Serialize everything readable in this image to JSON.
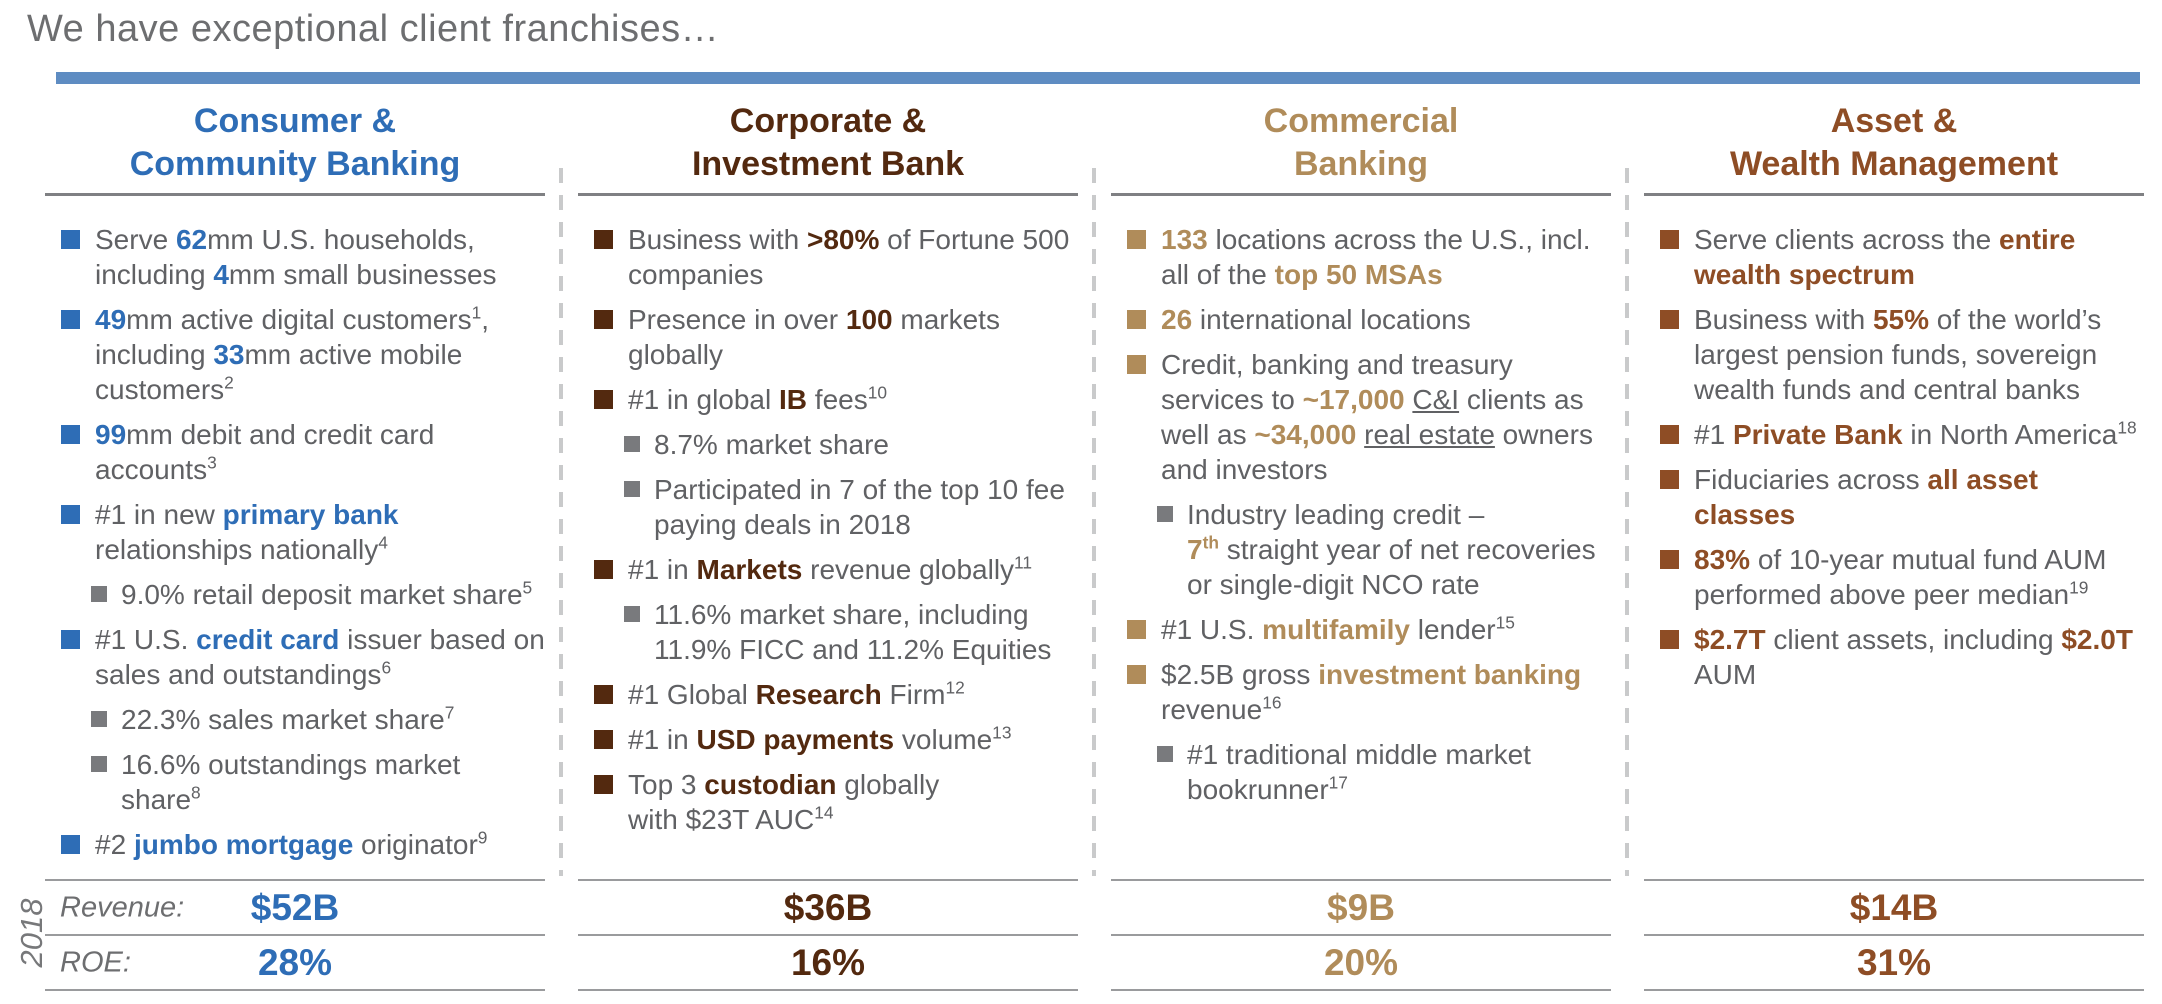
{
  "title": "We have exceptional client franchises…",
  "title_bar_color": "#5E8CC2",
  "year_label": "2018",
  "stats_labels": {
    "revenue": "Revenue:",
    "roe": "ROE:"
  },
  "columns": [
    {
      "id": "consumer-community-banking",
      "accent": "#2E6DB6",
      "title_lines": [
        "Consumer &",
        "Community Banking"
      ],
      "revenue": "$52B",
      "roe": "28%",
      "bullets": [
        {
          "level": 1,
          "segments": [
            {
              "t": "Serve "
            },
            {
              "t": "62",
              "b": 1,
              "a": 1
            },
            {
              "t": "mm U.S. households, including "
            },
            {
              "t": "4",
              "b": 1,
              "a": 1
            },
            {
              "t": "mm small businesses"
            }
          ]
        },
        {
          "level": 1,
          "segments": [
            {
              "t": "49",
              "b": 1,
              "a": 1
            },
            {
              "t": "mm active digital customers"
            },
            {
              "t": "1",
              "sup": 1
            },
            {
              "t": ", including "
            },
            {
              "t": "33",
              "b": 1,
              "a": 1
            },
            {
              "t": "mm active mobile customers"
            },
            {
              "t": "2",
              "sup": 1
            }
          ]
        },
        {
          "level": 1,
          "segments": [
            {
              "t": "99",
              "b": 1,
              "a": 1
            },
            {
              "t": "mm debit and credit card accounts"
            },
            {
              "t": "3",
              "sup": 1
            }
          ]
        },
        {
          "level": 1,
          "segments": [
            {
              "t": "#1 in new "
            },
            {
              "t": "primary bank",
              "b": 1,
              "a": 1
            },
            {
              "t": " relationships nationally"
            },
            {
              "t": "4",
              "sup": 1
            }
          ]
        },
        {
          "level": 2,
          "segments": [
            {
              "t": "9.0% retail deposit market share"
            },
            {
              "t": "5",
              "sup": 1
            }
          ]
        },
        {
          "level": 1,
          "segments": [
            {
              "t": "#1 U.S. "
            },
            {
              "t": "credit card",
              "b": 1,
              "a": 1
            },
            {
              "t": " issuer based on sales and outstandings"
            },
            {
              "t": "6",
              "sup": 1
            }
          ]
        },
        {
          "level": 2,
          "segments": [
            {
              "t": "22.3% sales market share"
            },
            {
              "t": "7",
              "sup": 1
            }
          ]
        },
        {
          "level": 2,
          "segments": [
            {
              "t": "16.6% outstandings market share"
            },
            {
              "t": "8",
              "sup": 1
            }
          ]
        },
        {
          "level": 1,
          "segments": [
            {
              "t": "#2 "
            },
            {
              "t": "jumbo mortgage",
              "b": 1,
              "a": 1
            },
            {
              "t": " originator"
            },
            {
              "t": "9",
              "sup": 1
            }
          ]
        }
      ]
    },
    {
      "id": "corporate-investment-bank",
      "accent": "#53290F",
      "title_lines": [
        "Corporate &",
        "Investment Bank"
      ],
      "revenue": "$36B",
      "roe": "16%",
      "bullets": [
        {
          "level": 1,
          "segments": [
            {
              "t": "Business with "
            },
            {
              "t": ">80%",
              "b": 1,
              "a": 1
            },
            {
              "t": " of Fortune 500 companies"
            }
          ]
        },
        {
          "level": 1,
          "segments": [
            {
              "t": "Presence in over "
            },
            {
              "t": "100",
              "b": 1,
              "a": 1
            },
            {
              "t": " markets globally"
            }
          ]
        },
        {
          "level": 1,
          "segments": [
            {
              "t": "#1 in global "
            },
            {
              "t": "IB",
              "b": 1,
              "a": 1
            },
            {
              "t": " fees"
            },
            {
              "t": "10",
              "sup": 1
            }
          ]
        },
        {
          "level": 2,
          "segments": [
            {
              "t": "8.7% market share"
            }
          ]
        },
        {
          "level": 2,
          "segments": [
            {
              "t": "Participated in 7 of the top 10 fee paying deals in 2018"
            }
          ]
        },
        {
          "level": 1,
          "segments": [
            {
              "t": "#1 in "
            },
            {
              "t": "Markets",
              "b": 1,
              "a": 1
            },
            {
              "t": " revenue globally"
            },
            {
              "t": "11",
              "sup": 1
            }
          ]
        },
        {
          "level": 2,
          "segments": [
            {
              "t": "11.6% market share, including 11.9% FICC and 11.2% Equities"
            }
          ]
        },
        {
          "level": 1,
          "segments": [
            {
              "t": "#1 Global "
            },
            {
              "t": "Research",
              "b": 1,
              "a": 1
            },
            {
              "t": " Firm"
            },
            {
              "t": "12",
              "sup": 1
            }
          ]
        },
        {
          "level": 1,
          "segments": [
            {
              "t": "#1 in "
            },
            {
              "t": "USD payments",
              "b": 1,
              "a": 1
            },
            {
              "t": " volume"
            },
            {
              "t": "13",
              "sup": 1
            }
          ]
        },
        {
          "level": 1,
          "segments": [
            {
              "t": "Top 3 "
            },
            {
              "t": "custodian",
              "b": 1,
              "a": 1
            },
            {
              "t": " globally"
            },
            {
              "br": 1
            },
            {
              "t": "with $23T AUC"
            },
            {
              "t": "14",
              "sup": 1
            }
          ]
        }
      ]
    },
    {
      "id": "commercial-banking",
      "accent": "#B08C5A",
      "title_lines": [
        "Commercial",
        "Banking"
      ],
      "revenue": "$9B",
      "roe": "20%",
      "bullets": [
        {
          "level": 1,
          "segments": [
            {
              "t": "133",
              "b": 1,
              "a": 1
            },
            {
              "t": " locations across the U.S., incl. all of the "
            },
            {
              "t": "top 50 MSAs",
              "b": 1,
              "a": 1
            }
          ]
        },
        {
          "level": 1,
          "segments": [
            {
              "t": "26",
              "b": 1,
              "a": 1
            },
            {
              "t": " international locations"
            }
          ]
        },
        {
          "level": 1,
          "segments": [
            {
              "t": "Credit, banking and treasury services to "
            },
            {
              "t": "~17,000",
              "b": 1,
              "a": 1
            },
            {
              "t": " "
            },
            {
              "t": "C&I",
              "u": 1
            },
            {
              "t": " clients as well as "
            },
            {
              "t": "~34,000",
              "b": 1,
              "a": 1
            },
            {
              "t": " "
            },
            {
              "t": "real estate",
              "u": 1
            },
            {
              "t": " owners and investors"
            }
          ]
        },
        {
          "level": 2,
          "segments": [
            {
              "t": "Industry leading credit –"
            },
            {
              "br": 1
            },
            {
              "t": "7",
              "b": 1,
              "a": 1
            },
            {
              "t": "th",
              "b": 1,
              "a": 1,
              "sup": 1
            },
            {
              "t": " straight year of net recoveries or single-digit NCO rate"
            }
          ]
        },
        {
          "level": 1,
          "segments": [
            {
              "t": "#1 U.S. "
            },
            {
              "t": "multifamily",
              "b": 1,
              "a": 1
            },
            {
              "t": " lender"
            },
            {
              "t": "15",
              "sup": 1
            }
          ]
        },
        {
          "level": 1,
          "segments": [
            {
              "t": "$2.5B gross "
            },
            {
              "t": "investment banking",
              "b": 1,
              "a": 1
            },
            {
              "t": " revenue"
            },
            {
              "t": "16",
              "sup": 1
            }
          ]
        },
        {
          "level": 2,
          "segments": [
            {
              "t": "#1 traditional middle market bookrunner"
            },
            {
              "t": "17",
              "sup": 1
            }
          ]
        }
      ]
    },
    {
      "id": "asset-wealth-management",
      "accent": "#8E4D25",
      "title_lines": [
        "Asset &",
        "Wealth Management"
      ],
      "revenue": "$14B",
      "roe": "31%",
      "bullets": [
        {
          "level": 1,
          "segments": [
            {
              "t": "Serve clients across the "
            },
            {
              "t": "entire wealth spectrum",
              "b": 1,
              "a": 1
            }
          ]
        },
        {
          "level": 1,
          "segments": [
            {
              "t": "Business with "
            },
            {
              "t": "55%",
              "b": 1,
              "a": 1
            },
            {
              "t": " of the world’s largest pension funds, sovereign wealth funds and central banks"
            }
          ]
        },
        {
          "level": 1,
          "segments": [
            {
              "t": "#1 "
            },
            {
              "t": "Private Bank",
              "b": 1,
              "a": 1
            },
            {
              "t": " in North America"
            },
            {
              "t": "18",
              "sup": 1
            }
          ]
        },
        {
          "level": 1,
          "segments": [
            {
              "t": "Fiduciaries across "
            },
            {
              "t": "all asset classes",
              "b": 1,
              "a": 1
            }
          ]
        },
        {
          "level": 1,
          "segments": [
            {
              "t": "83%",
              "b": 1,
              "a": 1
            },
            {
              "t": " of 10-year mutual fund AUM performed above peer median"
            },
            {
              "t": "19",
              "sup": 1
            }
          ]
        },
        {
          "level": 1,
          "segments": [
            {
              "t": "$2.7T",
              "b": 1,
              "a": 1
            },
            {
              "t": " client assets, including "
            },
            {
              "t": "$2.0T",
              "b": 1,
              "a": 1
            },
            {
              "t": " AUM"
            }
          ]
        }
      ]
    }
  ]
}
